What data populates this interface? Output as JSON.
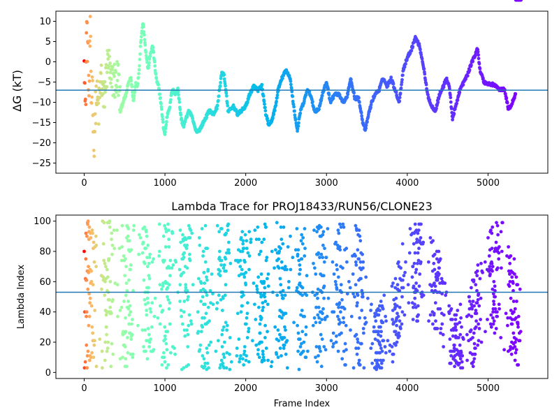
{
  "chart_data": [
    {
      "type": "scatter",
      "title": "",
      "xlabel": "",
      "ylabel": "ΔG (kT)",
      "xlim": [
        -350,
        5740
      ],
      "ylim": [
        -27.5,
        12.5
      ],
      "xticks": [
        0,
        1000,
        2000,
        3000,
        4000,
        5000
      ],
      "yticks": [
        -25,
        -20,
        -15,
        -10,
        -5,
        0,
        5,
        10
      ],
      "hline": -7.0,
      "hline_color": "#1f77b4",
      "colormap": "rainbow (color = frame index, red at start → violet at end)",
      "profile_x": [
        0,
        15,
        30,
        45,
        60,
        75,
        90,
        100,
        120,
        150,
        180,
        210,
        240,
        270,
        300,
        330,
        360,
        390,
        420,
        450,
        480,
        500,
        520,
        550,
        580,
        610,
        640,
        660,
        680,
        700,
        730,
        760,
        790,
        820,
        850,
        880,
        900,
        920,
        950,
        980,
        1000,
        1030,
        1060,
        1080,
        1100,
        1130,
        1160,
        1200,
        1230,
        1260,
        1280,
        1300,
        1340,
        1380,
        1420,
        1450,
        1500,
        1550,
        1600,
        1650,
        1700,
        1730,
        1760,
        1780,
        1800,
        1850,
        1900,
        1950,
        2000,
        2050,
        2100,
        2150,
        2200,
        2250,
        2290,
        2330,
        2370,
        2400,
        2450,
        2500,
        2550,
        2600,
        2640,
        2680,
        2720,
        2760,
        2800,
        2850,
        2900,
        2950,
        3000,
        3050,
        3100,
        3150,
        3200,
        3250,
        3300,
        3350,
        3400,
        3450,
        3480,
        3520,
        3560,
        3600,
        3650,
        3700,
        3750,
        3800,
        3850,
        3900,
        3950,
        4000,
        4050,
        4100,
        4150,
        4200,
        4250,
        4300,
        4350,
        4400,
        4450,
        4480,
        4520,
        4560,
        4600,
        4650,
        4700,
        4750,
        4800,
        4850,
        4870,
        4900,
        4950,
        5000,
        5050,
        5100,
        5150,
        5200,
        5250,
        5280,
        5310,
        5340,
        5380,
        5410
      ],
      "profile_y": [
        5,
        -15,
        10,
        2,
        -8,
        8,
        -12,
        -3,
        -20,
        -8,
        -12,
        -3,
        -10,
        -4,
        1,
        -6,
        -4,
        -5,
        -3,
        -12,
        -10,
        -9,
        -8,
        -5,
        -4,
        -10,
        -5,
        -6,
        -2,
        5,
        10,
        3,
        -2,
        2,
        4,
        -2,
        -5,
        -6,
        -10,
        -16,
        -18,
        -13,
        -11,
        -8,
        -7,
        -8,
        -6.5,
        -14,
        -16,
        -14,
        -13,
        -12,
        -14,
        -17,
        -17,
        -16,
        -14,
        -12,
        -13,
        -11,
        -3,
        -3,
        -8,
        -12,
        -12,
        -11,
        -13,
        -12,
        -11,
        -8,
        -6,
        -7,
        -6,
        -13,
        -16,
        -14,
        -11,
        -7,
        -4,
        -2,
        -4,
        -12,
        -17,
        -12,
        -10,
        -7,
        -8,
        -12,
        -12,
        -8,
        -5,
        -10,
        -8,
        -8,
        -10,
        -9,
        -4,
        -9,
        -9,
        -15,
        -17,
        -13,
        -10,
        -8,
        -7,
        -4,
        -6,
        -4,
        -7,
        -10,
        -2,
        1,
        3,
        6,
        4,
        -1,
        -8,
        -11,
        -12,
        -8,
        -6,
        -4,
        -6,
        -14,
        -11,
        -7,
        -5,
        -3,
        0,
        2,
        3.5,
        -2,
        -5,
        -5.5,
        -5.5,
        -6,
        -7,
        -6.5,
        -11.5,
        -11,
        -9.5,
        -8
      ]
    },
    {
      "type": "scatter",
      "title": "Lambda Trace for PROJ18433/RUN56/CLONE23",
      "xlabel": "Frame Index",
      "ylabel": "Lambda Index",
      "xlim": [
        -350,
        5740
      ],
      "ylim": [
        -4,
        104
      ],
      "xticks": [
        0,
        1000,
        2000,
        3000,
        4000,
        5000
      ],
      "yticks": [
        0,
        20,
        40,
        60,
        80,
        100
      ],
      "hline": 53,
      "hline_color": "#1f77b4",
      "colormap": "rainbow (color = frame index, red at start → violet at end)",
      "band_x": [
        0,
        200,
        400,
        600,
        800,
        1000,
        1200,
        1400,
        1600,
        1800,
        2000,
        2200,
        2400,
        2600,
        2800,
        3000,
        3200,
        3400,
        3500,
        3600,
        3800,
        4000,
        4200,
        4400,
        4500,
        4600,
        4800,
        5000,
        5200,
        5400
      ],
      "band_low": [
        2,
        2,
        2,
        2,
        2,
        2,
        2,
        2,
        2,
        2,
        2,
        2,
        2,
        2,
        2,
        2,
        2,
        2,
        2,
        2,
        2,
        35,
        30,
        25,
        2,
        2,
        2,
        30,
        15,
        2
      ],
      "band_high": [
        100,
        100,
        100,
        100,
        100,
        100,
        100,
        100,
        100,
        100,
        100,
        100,
        100,
        100,
        100,
        100,
        100,
        100,
        60,
        45,
        55,
        100,
        100,
        80,
        55,
        40,
        60,
        100,
        100,
        60
      ]
    }
  ]
}
